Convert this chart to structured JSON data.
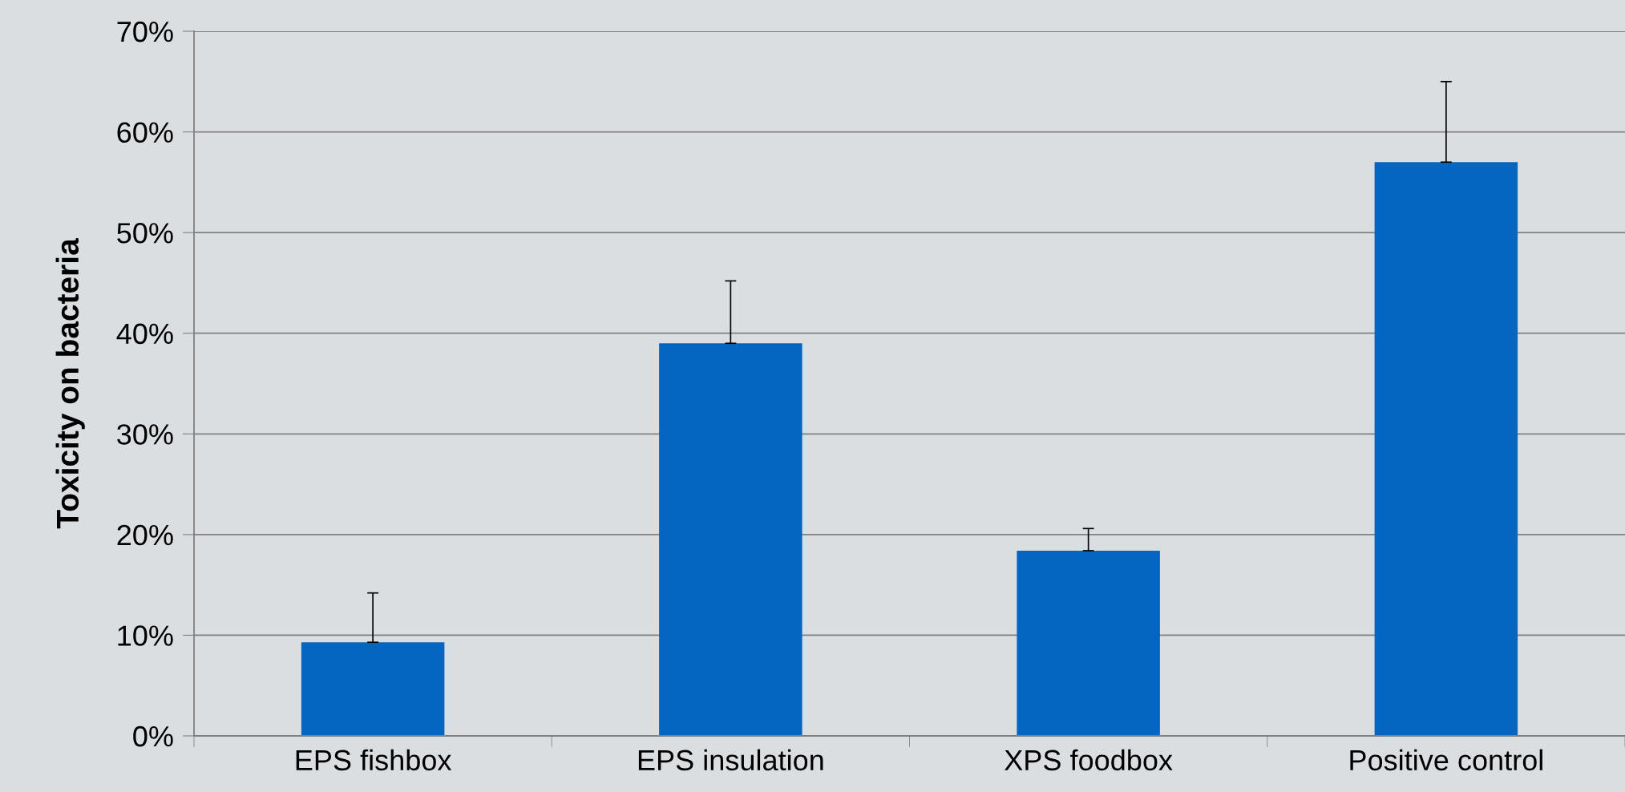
{
  "chart_data": {
    "type": "bar",
    "ylabel": "Toxicity on bacteria",
    "categories": [
      "EPS fishbox",
      "EPS insulation",
      "XPS foodbox",
      "Positive control"
    ],
    "values": [
      9.3,
      39.0,
      18.4,
      57.0
    ],
    "errors": [
      [
        9.3,
        14.2
      ],
      [
        39.0,
        45.2
      ],
      [
        18.4,
        20.6
      ],
      [
        57.0,
        65.0
      ]
    ],
    "color": "#0466c0",
    "ylim": [
      0,
      70
    ],
    "yticks": [
      {
        "value": 0,
        "label": "0%"
      },
      {
        "value": 10,
        "label": "10%"
      },
      {
        "value": 20,
        "label": "20%"
      },
      {
        "value": 30,
        "label": "30%"
      },
      {
        "value": 40,
        "label": "40%"
      },
      {
        "value": 50,
        "label": "50%"
      },
      {
        "value": 60,
        "label": "60%"
      },
      {
        "value": 70,
        "label": "70%"
      }
    ],
    "grid": "y"
  }
}
